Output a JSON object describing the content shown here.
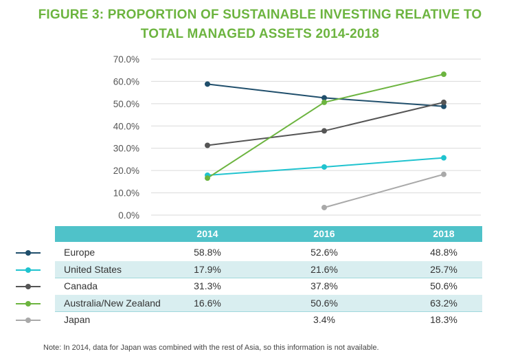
{
  "title_line1": "FIGURE 3: PROPORTION OF SUSTAINABLE INVESTING RELATIVE TO",
  "title_line2": "TOTAL MANAGED ASSETS 2014-2018",
  "note": "Note: In 2014, data for Japan was combined with the rest of Asia, so this information is not available.",
  "chart_data": {
    "type": "line",
    "x": [
      "2014",
      "2016",
      "2018"
    ],
    "ylim": [
      0,
      70
    ],
    "y_ticks": [
      "0.0%",
      "10.0%",
      "20.0%",
      "30.0%",
      "40.0%",
      "50.0%",
      "60.0%",
      "70.0%"
    ],
    "grid": true,
    "legend_placement": "table-left",
    "series": [
      {
        "name": "Europe",
        "color": "#1f4e6b",
        "values": [
          58.8,
          52.6,
          48.8
        ],
        "labels": [
          "58.8%",
          "52.6%",
          "48.8%"
        ]
      },
      {
        "name": "United States",
        "color": "#1fc3cf",
        "values": [
          17.9,
          21.6,
          25.7
        ],
        "labels": [
          "17.9%",
          "21.6%",
          "25.7%"
        ]
      },
      {
        "name": "Canada",
        "color": "#555555",
        "values": [
          31.3,
          37.8,
          50.6
        ],
        "labels": [
          "31.3%",
          "37.8%",
          "50.6%"
        ]
      },
      {
        "name": "Australia/New Zealand",
        "color": "#6cb43f",
        "values": [
          16.6,
          50.6,
          63.2
        ],
        "labels": [
          "16.6%",
          "50.6%",
          "63.2%"
        ]
      },
      {
        "name": "Japan",
        "color": "#a9a9a9",
        "values": [
          null,
          3.4,
          18.3
        ],
        "labels": [
          "",
          "3.4%",
          "18.3%"
        ]
      }
    ]
  }
}
